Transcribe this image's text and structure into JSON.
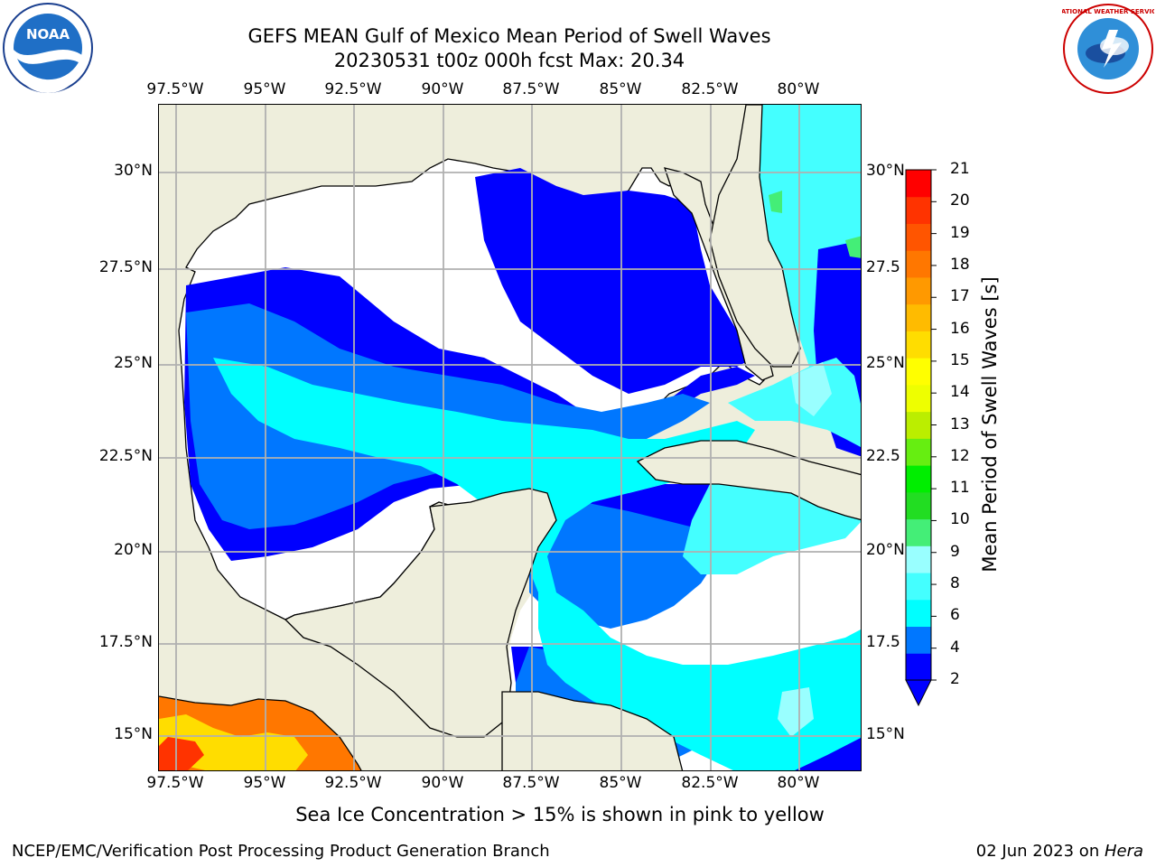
{
  "header": {
    "title_line1": "GEFS MEAN Gulf of Mexico Mean Period of Swell Waves",
    "title_line2": "20230531 t00z 000h fcst   Max: 20.34"
  },
  "logos": {
    "left": {
      "name": "noaa-logo",
      "text": "NOAA"
    },
    "right": {
      "name": "nws-logo",
      "text": "NATIONAL WEATHER SERVICE"
    }
  },
  "map": {
    "lon_labels": [
      "97.5°W",
      "95°W",
      "92.5°W",
      "90°W",
      "87.5°W",
      "85°W",
      "82.5°W",
      "80°W"
    ],
    "lat_labels_left": [
      "30°N",
      "27.5°N",
      "25°N",
      "22.5°N",
      "20°N",
      "17.5°N",
      "15°N"
    ],
    "lat_labels_right": [
      "30°N",
      "27.5",
      "25°N",
      "22.5",
      "20°N",
      "17.5",
      "15°N"
    ],
    "colors": {
      "land": "#eeeedc",
      "ocean_missing": "#ffffff",
      "grid": "#b0b0b0",
      "coast": "#000000"
    }
  },
  "colorbar": {
    "label": "Mean Period of Swell Waves [s]",
    "ticks": [
      "21",
      "20",
      "19",
      "18",
      "17",
      "16",
      "15",
      "14",
      "13",
      "12",
      "11",
      "10",
      "9",
      "8",
      "6",
      "4",
      "2"
    ],
    "colors": [
      "#0000ff",
      "#0077ff",
      "#00ffff",
      "#44ffff",
      "#99ffff",
      "#44ee77",
      "#22dd22",
      "#00ee00",
      "#66ee11",
      "#bbee00",
      "#eeff00",
      "#ffff00",
      "#ffdd00",
      "#ffbb00",
      "#ff9900",
      "#ff7700",
      "#ff5500",
      "#ff3300",
      "#ff0000"
    ]
  },
  "caption": "Sea Ice Concentration > 15% is shown in pink to yellow",
  "footer": {
    "left": "NCEP/EMC/Verification Post Processing Product Generation Branch",
    "right_date": "02 Jun 2023 on ",
    "right_host": "Hera"
  }
}
